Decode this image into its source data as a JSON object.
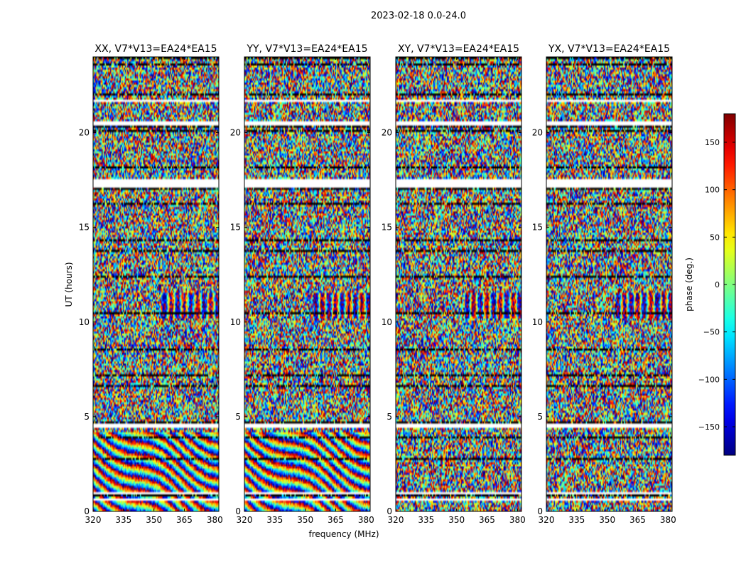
{
  "chart_data": {
    "type": "heatmap",
    "suptitle": "2023-02-18 0.0-24.0",
    "xlabel": "frequency (MHz)",
    "ylabel": "UT (hours)",
    "xlim": [
      320,
      382
    ],
    "ylim": [
      0,
      24
    ],
    "xticks": [
      320,
      335,
      350,
      365,
      380
    ],
    "yticks": [
      0,
      5,
      10,
      15,
      20
    ],
    "panels": [
      {
        "title": "XX, V7*V13=EA24*EA15",
        "pol": "XX"
      },
      {
        "title": "YY, V7*V13=EA24*EA15",
        "pol": "YY"
      },
      {
        "title": "XY, V7*V13=EA24*EA15",
        "pol": "XY"
      },
      {
        "title": "YX, V7*V13=EA24*EA15",
        "pol": "YX"
      }
    ],
    "colorbar": {
      "label": "phase (deg.)",
      "vmin": -180,
      "vmax": 180,
      "ticks": [
        -150,
        -100,
        -50,
        0,
        50,
        100,
        150
      ],
      "colormap": "jet"
    },
    "flagged_ut_gaps": [
      [
        0.55,
        0.65
      ],
      [
        0.95,
        1.05
      ],
      [
        4.45,
        4.6
      ],
      [
        17.1,
        17.5
      ],
      [
        20.35,
        20.55
      ],
      [
        21.65,
        21.72
      ],
      [
        22.95,
        23.02
      ]
    ]
  }
}
